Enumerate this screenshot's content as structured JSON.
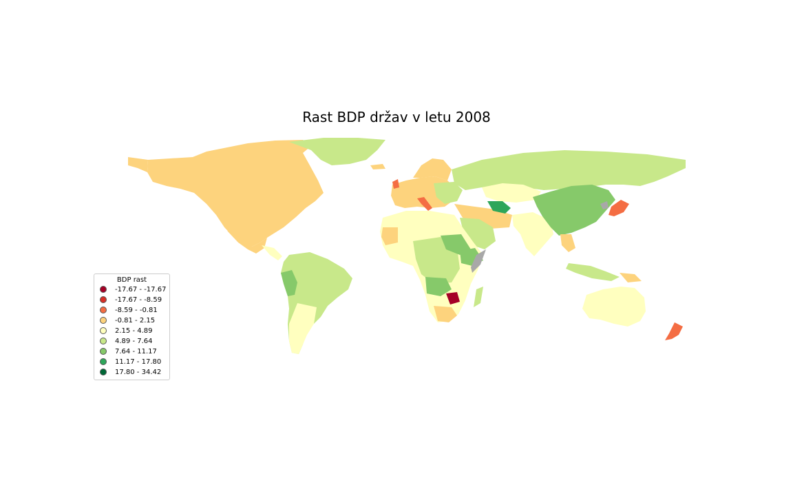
{
  "title": "Rast BDP držav v letu 2008",
  "legend": {
    "title": "BDP rast",
    "items": [
      {
        "label": "-17.67 - -17.67",
        "color": "#a50026"
      },
      {
        "label": "-17.67 - -8.59",
        "color": "#d73027"
      },
      {
        "label": "-8.59 - -0.81",
        "color": "#f46d43"
      },
      {
        "label": "-0.81 - 2.15",
        "color": "#fdd37d"
      },
      {
        "label": "2.15 - 4.89",
        "color": "#ffffbf"
      },
      {
        "label": "4.89 - 7.64",
        "color": "#c8e88a"
      },
      {
        "label": "7.64 - 11.17",
        "color": "#86c96a"
      },
      {
        "label": "11.17 - 17.80",
        "color": "#2ea65a"
      },
      {
        "label": "17.80 - 34.42",
        "color": "#006837"
      }
    ]
  },
  "no_data_color": "#a8a8a8"
}
